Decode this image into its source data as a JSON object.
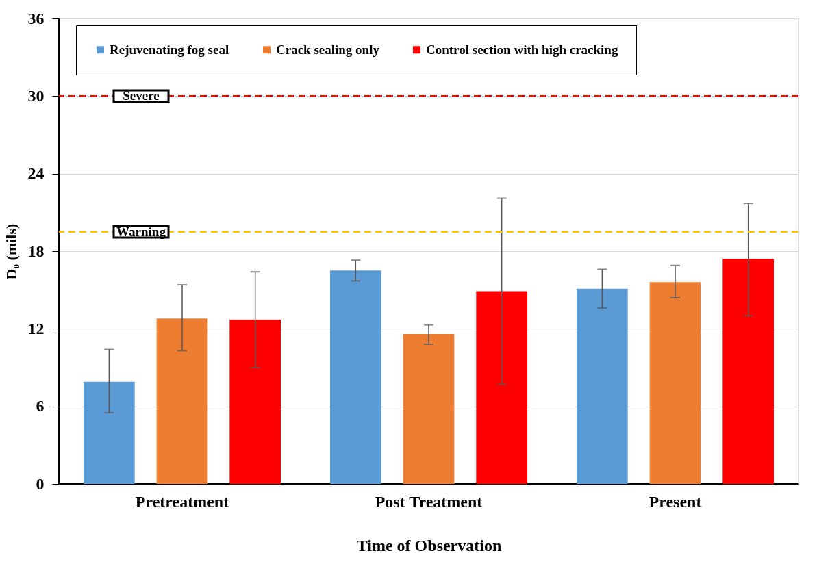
{
  "chart_data": {
    "type": "bar",
    "xlabel": "Time of Observation",
    "ylabel": "D₀ (mils)",
    "categories": [
      "Pretreatment",
      "Post Treatment",
      "Present"
    ],
    "series": [
      {
        "name": "Rejuvenating fog seal",
        "color": "#5b9bd5",
        "values": [
          7.9,
          16.5,
          15.1
        ],
        "errors": [
          [
            5.5,
            10.4
          ],
          [
            15.7,
            17.3
          ],
          [
            13.6,
            16.6
          ]
        ]
      },
      {
        "name": "Crack sealing only",
        "color": "#ed7d31",
        "values": [
          12.8,
          11.6,
          15.6
        ],
        "errors": [
          [
            10.3,
            15.4
          ],
          [
            10.8,
            12.3
          ],
          [
            14.4,
            16.9
          ]
        ]
      },
      {
        "name": "Control section with high cracking",
        "color": "#ff0000",
        "values": [
          12.7,
          14.9,
          17.4
        ],
        "errors": [
          [
            9.0,
            16.4
          ],
          [
            7.7,
            22.1
          ],
          [
            13.0,
            21.7
          ]
        ]
      }
    ],
    "ylim": [
      0,
      36
    ],
    "yticks": [
      0,
      6,
      12,
      18,
      24,
      30,
      36
    ],
    "grid": "y",
    "legend": "top",
    "ref_lines": [
      {
        "axis": "y",
        "value": 30,
        "label": "Severe",
        "color": "#ff0000",
        "line_style": "dashed"
      },
      {
        "axis": "y",
        "value": 19.5,
        "label": "Warning",
        "color": "#ffc000",
        "line_style": "dashed"
      }
    ]
  }
}
